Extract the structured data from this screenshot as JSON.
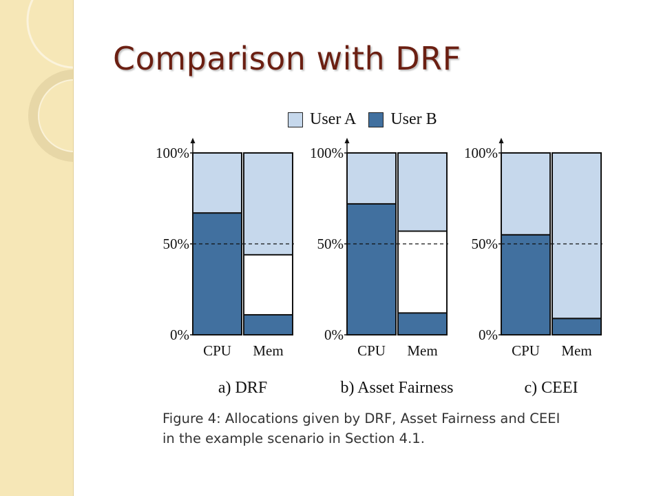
{
  "slide": {
    "title": "Comparison with DRF",
    "caption": {
      "line1": "Figure 4:  Allocations given by DRF, Asset Fairness and CEEI",
      "line2": "in the example scenario in Section 4.1."
    }
  },
  "colors": {
    "user_a": "#c6d8ec",
    "user_b": "#41709f",
    "unallocated": "#ffffff",
    "title": "#6b1f12",
    "sidebar": "#f6e7b7"
  },
  "legend": [
    {
      "label": "User A",
      "color": "#c6d8ec"
    },
    {
      "label": "User B",
      "color": "#41709f"
    }
  ],
  "chart_data": [
    {
      "type": "bar",
      "stacked": true,
      "title": "a) DRF",
      "categories": [
        "CPU",
        "Mem"
      ],
      "y_ticks": [
        "0%",
        "50%",
        "100%"
      ],
      "ylim": [
        0,
        100
      ],
      "reference_line": 50,
      "series": [
        {
          "name": "User B",
          "values": [
            67,
            11
          ]
        },
        {
          "name": "User A",
          "values": [
            33,
            56
          ]
        }
      ]
    },
    {
      "type": "bar",
      "stacked": true,
      "title": "b) Asset Fairness",
      "categories": [
        "CPU",
        "Mem"
      ],
      "y_ticks": [
        "0%",
        "50%",
        "100%"
      ],
      "ylim": [
        0,
        100
      ],
      "reference_line": 50,
      "series": [
        {
          "name": "User B",
          "values": [
            72,
            12
          ]
        },
        {
          "name": "User A",
          "values": [
            28,
            43
          ]
        }
      ]
    },
    {
      "type": "bar",
      "stacked": true,
      "title": "c) CEEI",
      "categories": [
        "CPU",
        "Mem"
      ],
      "y_ticks": [
        "0%",
        "50%",
        "100%"
      ],
      "ylim": [
        0,
        100
      ],
      "reference_line": 50,
      "series": [
        {
          "name": "User B",
          "values": [
            55,
            9
          ]
        },
        {
          "name": "User A",
          "values": [
            45,
            91
          ]
        }
      ]
    }
  ]
}
